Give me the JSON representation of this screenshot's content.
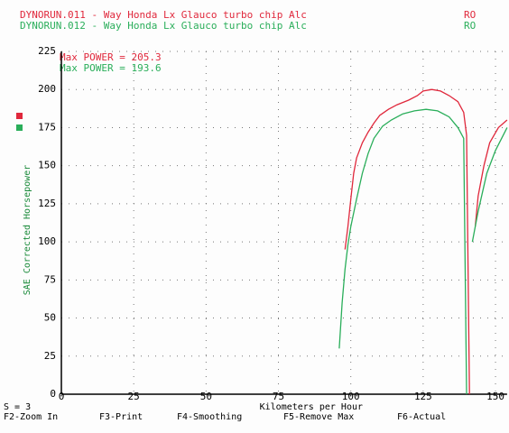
{
  "chart_data": {
    "type": "line",
    "xlabel": "Kilometers per Hour",
    "ylabel": "SAE Corrected Horsepower",
    "xlim": [
      0,
      154
    ],
    "ylim": [
      0,
      225
    ],
    "xticks": [
      0,
      25,
      50,
      75,
      100,
      125,
      150
    ],
    "yticks": [
      0,
      25,
      50,
      75,
      100,
      125,
      150,
      175,
      200,
      225
    ],
    "grid": true,
    "series": [
      {
        "name": "DYNORUN.011 - Way Honda Lx Glauco turbo chip Alc",
        "code": "RO",
        "annotation": "Max POWER = 205.3",
        "color": "#e0283c",
        "x": [
          98,
          99,
          100,
          101,
          102,
          104,
          106,
          108,
          110,
          113,
          116,
          120,
          123,
          125,
          128,
          131,
          134,
          137,
          139,
          140,
          141,
          142,
          143,
          144,
          146,
          148,
          151,
          154
        ],
        "values": [
          95,
          110,
          128,
          145,
          155,
          165,
          172,
          178,
          183,
          187,
          190,
          193,
          196,
          199,
          200,
          199,
          196,
          192,
          185,
          170,
          0,
          null,
          110,
          130,
          150,
          165,
          175,
          180
        ]
      },
      {
        "name": "DYNORUN.012 - Way Honda Lx Glauco turbo chip Alc",
        "code": "RO",
        "annotation": "Max POWER = 193.6",
        "color": "#2aae5a",
        "x": [
          96,
          97,
          98,
          99,
          100,
          102,
          104,
          106,
          108,
          111,
          114,
          118,
          122,
          126,
          130,
          134,
          137,
          139,
          140,
          141,
          142,
          144,
          147,
          150,
          154
        ],
        "values": [
          30,
          60,
          82,
          98,
          110,
          128,
          145,
          158,
          168,
          176,
          180,
          184,
          186,
          187,
          186,
          182,
          175,
          168,
          0,
          null,
          100,
          120,
          145,
          160,
          175
        ]
      }
    ]
  },
  "smoothing": "S = 3",
  "function_keys": [
    "F2-Zoom In",
    "F3-Print",
    "F4-Smoothing",
    "F5-Remove Max",
    "F6-Actual"
  ]
}
